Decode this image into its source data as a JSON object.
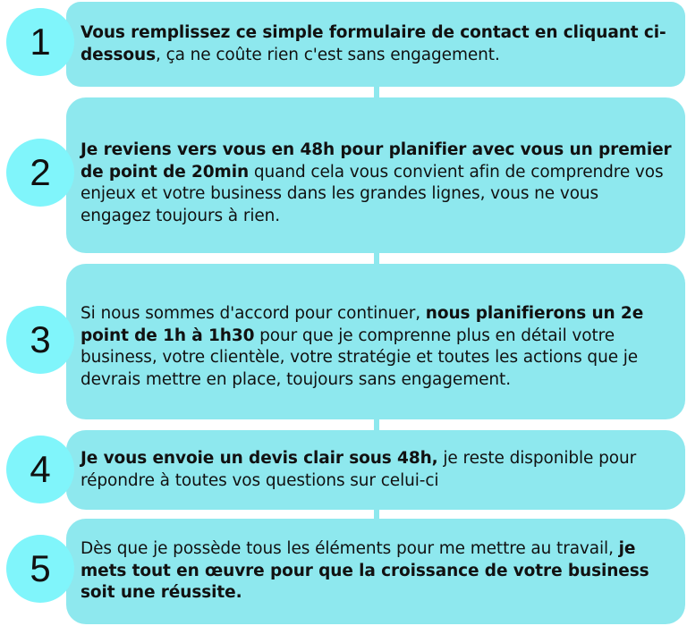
{
  "steps": [
    {
      "number": "1",
      "bold": "Vous remplissez ce simple formulaire de contact en cliquant ci-dessous",
      "text": ", ça ne coûte rien c'est sans engagement.",
      "pre": ""
    },
    {
      "number": "2",
      "pre": "",
      "bold": "Je reviens vers vous en 48h pour planifier avec vous un premier de point de 20min",
      "text": " quand cela vous convient afin de comprendre vos enjeux et votre business dans les grandes lignes, vous ne vous engagez toujours à rien."
    },
    {
      "number": "3",
      "pre": "Si nous sommes d'accord pour continuer, ",
      "bold": "nous planifierons un 2e point de 1h à 1h30",
      "text": " pour que je comprenne plus en détail votre business, votre clientèle, votre stratégie et toutes les actions que je devrais mettre en place, toujours sans engagement."
    },
    {
      "number": "4",
      "pre": "",
      "bold": "Je vous envoie un devis clair sous 48h,",
      "text": " je reste disponible pour répondre à toutes vos questions sur celui-ci"
    },
    {
      "number": "5",
      "pre": "Dès que je possède tous les éléments pour me mettre au travail, ",
      "bold": "je mets tout en œuvre pour que la croissance de votre business soit une réussite.",
      "text": ""
    }
  ],
  "colors": {
    "box": "#8ee8ee",
    "circle": "#80f5fb"
  }
}
